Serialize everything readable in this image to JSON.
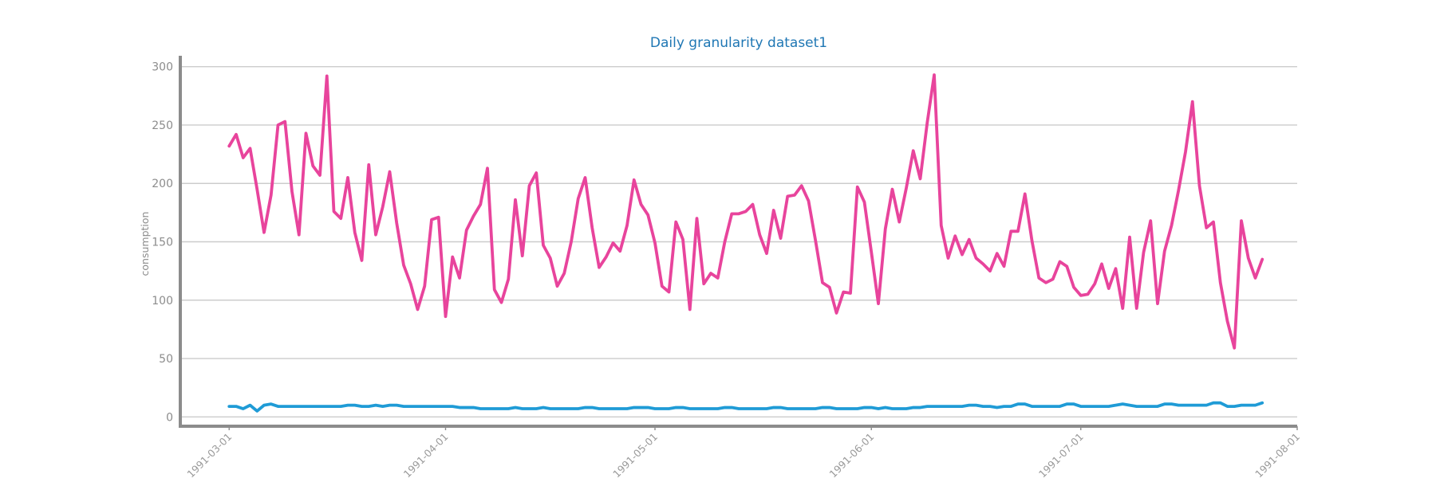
{
  "chart_data": {
    "type": "line",
    "title": "Daily granularity dataset1",
    "xlabel": "",
    "ylabel": "consumption",
    "ylim": [
      -8,
      308
    ],
    "xlim": [
      "1991-02-22",
      "1991-08-01"
    ],
    "yticks": [
      0,
      50,
      100,
      150,
      200,
      250,
      300
    ],
    "xticks": [
      "1991-03-01",
      "1991-04-01",
      "1991-05-01",
      "1991-06-01",
      "1991-07-01",
      "1991-08-01"
    ],
    "grid": true,
    "x_start": "1991-03-01",
    "series": [
      {
        "color": "#e8449c",
        "values": [
          232,
          242,
          222,
          230,
          195,
          158,
          190,
          250,
          253,
          193,
          156,
          243,
          215,
          207,
          292,
          176,
          170,
          205,
          158,
          134,
          216,
          156,
          180,
          210,
          166,
          130,
          114,
          92,
          112,
          169,
          171,
          86,
          137,
          119,
          160,
          172,
          182,
          213,
          109,
          98,
          118,
          186,
          138,
          198,
          209,
          147,
          136,
          112,
          123,
          150,
          187,
          205,
          162,
          128,
          137,
          149,
          142,
          164,
          203,
          182,
          173,
          149,
          112,
          107,
          167,
          152,
          92,
          170,
          114,
          123,
          119,
          150,
          174,
          174,
          176,
          182,
          156,
          140,
          177,
          153,
          189,
          190,
          198,
          185,
          151,
          115,
          111,
          89,
          107,
          106,
          197,
          184,
          141,
          97,
          161,
          195,
          167,
          196,
          228,
          204,
          252,
          293,
          164,
          136,
          155,
          139,
          152,
          136,
          131,
          125,
          140,
          129,
          159,
          159,
          191,
          151,
          119,
          115,
          118,
          133,
          129,
          111,
          104,
          105,
          114,
          131,
          110,
          127,
          93,
          154,
          93,
          141,
          168,
          97,
          142,
          164,
          194,
          227,
          270,
          198,
          162,
          167,
          115,
          82,
          59,
          168,
          136,
          119,
          135
        ]
      },
      {
        "color": "#1f9bd6",
        "values": [
          9,
          9,
          7,
          10,
          5,
          10,
          11,
          9,
          9,
          9,
          9,
          9,
          9,
          9,
          9,
          9,
          9,
          10,
          10,
          9,
          9,
          10,
          9,
          10,
          10,
          9,
          9,
          9,
          9,
          9,
          9,
          9,
          9,
          8,
          8,
          8,
          7,
          7,
          7,
          7,
          7,
          8,
          7,
          7,
          7,
          8,
          7,
          7,
          7,
          7,
          7,
          8,
          8,
          7,
          7,
          7,
          7,
          7,
          8,
          8,
          8,
          7,
          7,
          7,
          8,
          8,
          7,
          7,
          7,
          7,
          7,
          8,
          8,
          7,
          7,
          7,
          7,
          7,
          8,
          8,
          7,
          7,
          7,
          7,
          7,
          8,
          8,
          7,
          7,
          7,
          7,
          8,
          8,
          7,
          8,
          7,
          7,
          7,
          8,
          8,
          9,
          9,
          9,
          9,
          9,
          9,
          10,
          10,
          9,
          9,
          8,
          9,
          9,
          11,
          11,
          9,
          9,
          9,
          9,
          9,
          11,
          11,
          9,
          9,
          9,
          9,
          9,
          10,
          11,
          10,
          9,
          9,
          9,
          9,
          11,
          11,
          10,
          10,
          10,
          10,
          10,
          12,
          12,
          9,
          9,
          10,
          10,
          10,
          12
        ]
      }
    ]
  }
}
